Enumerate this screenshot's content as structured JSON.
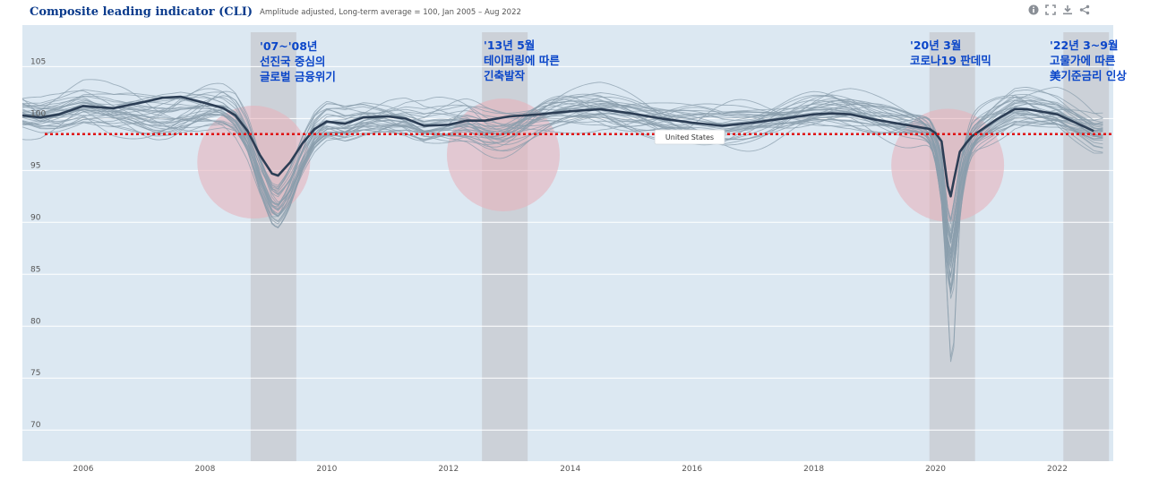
{
  "header": {
    "title": "Composite leading indicator (CLI)",
    "subtitle": "Amplitude adjusted, Long-term average = 100, Jan 2005 – Aug 2022"
  },
  "toolbar": {
    "icons": [
      "info-icon",
      "fullscreen-icon",
      "download-icon",
      "share-icon"
    ]
  },
  "colors": {
    "plot_background": "#dce8f2",
    "main_line": "#2c3e55",
    "background_lines": "#8a9eac",
    "event_band": "#c9cdd3",
    "highlight_circle": "#e6b3bd",
    "reference_line": "#e01010",
    "annotation_text": "#0b46c9"
  },
  "us_label": "United States",
  "annotations": [
    {
      "lines": [
        "'07~'08년",
        "선진국 중심의",
        "글로벌 금융위기"
      ]
    },
    {
      "lines": [
        "'13년 5월",
        "테이퍼링에 따른",
        "긴축발작"
      ]
    },
    {
      "lines": [
        "'20년 3월",
        "코로나19 판데믹"
      ]
    },
    {
      "lines": [
        "'22년 3~9월",
        "고물가에 따른",
        "美기준금리 인상"
      ]
    }
  ],
  "chart_data": {
    "type": "line",
    "xlim": [
      2005,
      2022.92
    ],
    "ylim": [
      67,
      109
    ],
    "x_ticks": [
      2006,
      2008,
      2010,
      2012,
      2014,
      2016,
      2018,
      2020,
      2022
    ],
    "y_ticks": [
      70,
      75,
      80,
      85,
      90,
      95,
      100,
      105
    ],
    "grid": "horizontal",
    "reference_line_y": 98.5,
    "event_bands": [
      [
        2008.75,
        2009.5
      ],
      [
        2012.55,
        2013.3
      ],
      [
        2019.9,
        2020.65
      ],
      [
        2022.1,
        2022.85
      ]
    ],
    "highlight_circles": [
      {
        "x": 2008.8,
        "y": 95.8
      },
      {
        "x": 2012.9,
        "y": 96.5
      },
      {
        "x": 2020.2,
        "y": 95.5
      }
    ],
    "series": [
      {
        "name": "United States",
        "x": [
          2005.0,
          2005.3,
          2005.6,
          2006.0,
          2006.2,
          2006.5,
          2007.0,
          2007.3,
          2007.6,
          2008.0,
          2008.3,
          2008.5,
          2008.7,
          2008.9,
          2009.1,
          2009.2,
          2009.4,
          2009.6,
          2009.8,
          2010.0,
          2010.3,
          2010.6,
          2011.0,
          2011.3,
          2011.6,
          2012.0,
          2012.3,
          2012.6,
          2013.0,
          2013.5,
          2014.0,
          2014.5,
          2015.0,
          2015.5,
          2016.0,
          2016.5,
          2017.0,
          2017.5,
          2018.0,
          2018.3,
          2018.6,
          2019.0,
          2019.5,
          2019.9,
          2020.0,
          2020.1,
          2020.2,
          2020.25,
          2020.3,
          2020.4,
          2020.5,
          2020.6,
          2020.8,
          2021.0,
          2021.3,
          2021.5,
          2021.8,
          2022.0,
          2022.3,
          2022.6
        ],
        "values": [
          100.3,
          100.1,
          100.4,
          101.2,
          101.1,
          101.0,
          101.6,
          102.0,
          102.1,
          101.5,
          101.0,
          100.3,
          98.8,
          96.5,
          94.7,
          94.5,
          95.8,
          97.6,
          99.0,
          99.7,
          99.5,
          100.1,
          100.2,
          100.0,
          99.3,
          99.4,
          99.8,
          99.8,
          100.2,
          100.4,
          100.7,
          100.9,
          100.5,
          100.0,
          99.6,
          99.3,
          99.6,
          100.0,
          100.4,
          100.5,
          100.4,
          99.9,
          99.4,
          99.0,
          98.6,
          97.8,
          93.5,
          92.5,
          94.0,
          96.8,
          97.6,
          98.3,
          99.1,
          99.9,
          100.9,
          100.9,
          100.6,
          100.4,
          99.6,
          98.8
        ]
      }
    ]
  }
}
